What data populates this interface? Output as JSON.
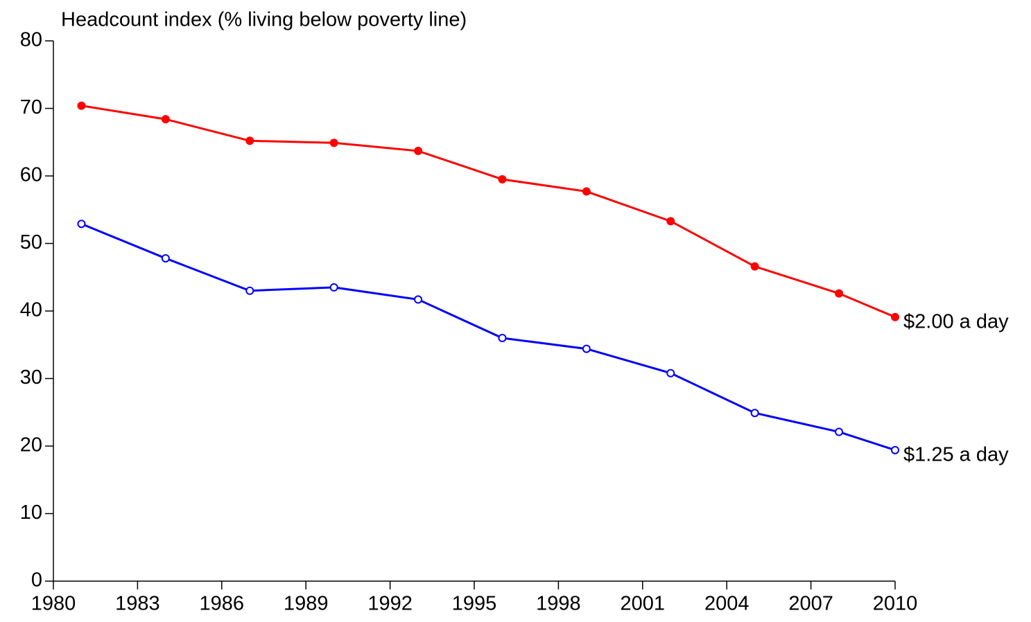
{
  "chart_data": {
    "type": "line",
    "title": "Headcount index (% living below poverty line)",
    "x": [
      1981,
      1984,
      1987,
      1990,
      1993,
      1996,
      1999,
      2002,
      2005,
      2008,
      2010
    ],
    "series": [
      {
        "name": "$2.00 a day",
        "color": "#ff0000",
        "marker": "filled",
        "values": [
          70.4,
          68.4,
          65.2,
          64.9,
          63.7,
          59.5,
          57.7,
          53.3,
          46.6,
          42.6,
          39.1
        ]
      },
      {
        "name": "$1.25 a day",
        "color": "#0000ff",
        "marker": "open",
        "values": [
          52.9,
          47.8,
          43.0,
          43.5,
          41.7,
          36.0,
          34.4,
          30.8,
          24.9,
          22.1,
          19.4
        ]
      }
    ],
    "xlim": [
      1980,
      2010
    ],
    "xticks": [
      1980,
      1983,
      1986,
      1989,
      1992,
      1995,
      1998,
      2001,
      2004,
      2007,
      2010
    ],
    "ylim": [
      0,
      80
    ],
    "yticks": [
      0,
      10,
      20,
      30,
      40,
      50,
      60,
      70,
      80
    ],
    "grid": false
  }
}
